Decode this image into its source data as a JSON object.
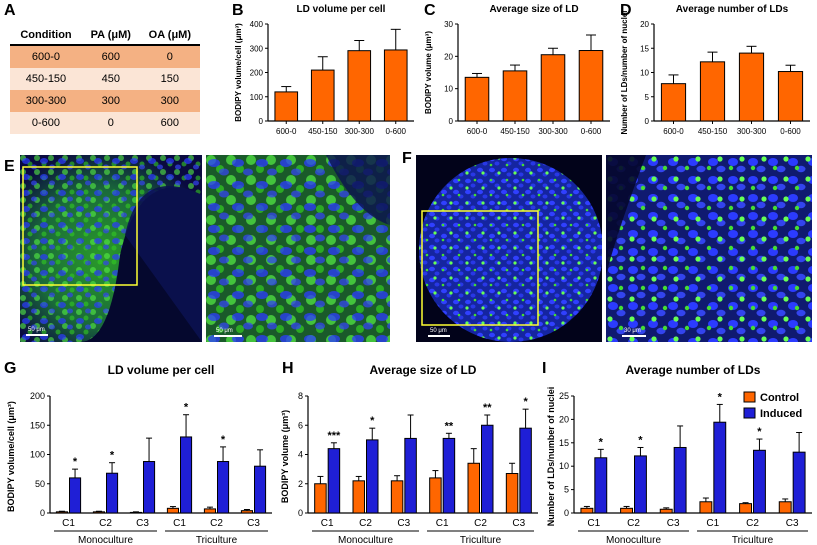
{
  "panel_labels": {
    "A": "A",
    "B": "B",
    "C": "C",
    "D": "D",
    "E": "E",
    "F": "F",
    "G": "G",
    "H": "H",
    "I": "I"
  },
  "table": {
    "headers": [
      "Condition",
      "PA (μM)",
      "OA (μM)"
    ],
    "rows": [
      [
        "600-0",
        "600",
        "0"
      ],
      [
        "450-150",
        "450",
        "150"
      ],
      [
        "300-300",
        "300",
        "300"
      ],
      [
        "0-600",
        "0",
        "600"
      ]
    ],
    "row_colors": [
      "#f4b183",
      "#fbe5d6",
      "#f4b183",
      "#fbe5d6"
    ]
  },
  "colors": {
    "orange": "#ff6600",
    "blue": "#1f1fd6",
    "yellow": "#ffff33"
  },
  "images": {
    "E_left": {
      "scale": "50 μm"
    },
    "E_right": {
      "scale": "50 μm"
    },
    "F_left": {
      "scale": "50 μm"
    },
    "F_right": {
      "scale": "30 μm"
    }
  },
  "chart_data": [
    {
      "id": "B",
      "type": "bar",
      "title": "LD volume per cell",
      "ylabel": "BODIPY volume/cell (μm³)",
      "categories": [
        "600-0",
        "450-150",
        "300-300",
        "0-600"
      ],
      "values": [
        120,
        210,
        290,
        293
      ],
      "errors": [
        22,
        55,
        42,
        85
      ],
      "ylim": [
        0,
        400
      ],
      "yticks": [
        0,
        100,
        200,
        300,
        400
      ]
    },
    {
      "id": "C",
      "type": "bar",
      "title": "Average size of LD",
      "ylabel": "BODIPY volume (μm³)",
      "categories": [
        "600-0",
        "450-150",
        "300-300",
        "0-600"
      ],
      "values": [
        13.5,
        15.5,
        20.5,
        21.8
      ],
      "errors": [
        1.2,
        1.8,
        2.0,
        4.8
      ],
      "ylim": [
        0,
        30
      ],
      "yticks": [
        0,
        10,
        20,
        30
      ]
    },
    {
      "id": "D",
      "type": "bar",
      "title": "Average number of LDs",
      "ylabel": "Number of LDs/number of nuclei",
      "categories": [
        "600-0",
        "450-150",
        "300-300",
        "0-600"
      ],
      "values": [
        7.7,
        12.2,
        14.0,
        10.2
      ],
      "errors": [
        1.8,
        2.0,
        1.4,
        1.3
      ],
      "ylim": [
        0,
        20
      ],
      "yticks": [
        0,
        5,
        10,
        15,
        20
      ]
    },
    {
      "id": "G",
      "type": "bar",
      "title": "LD volume per cell",
      "ylabel": "BODIPY volume/cell (μm³)",
      "categories": [
        "C1",
        "C2",
        "C3",
        "C1",
        "C2",
        "C3"
      ],
      "groups": [
        "Monoculture",
        "Triculture"
      ],
      "series": [
        {
          "name": "Control",
          "values": [
            2,
            2,
            1,
            8,
            7,
            4
          ],
          "errors": [
            1,
            1,
            1,
            3,
            3,
            2
          ]
        },
        {
          "name": "Induced",
          "values": [
            60,
            68,
            88,
            130,
            88,
            80
          ],
          "errors": [
            15,
            18,
            40,
            38,
            25,
            28
          ]
        }
      ],
      "significance": [
        "*",
        "*",
        "",
        "*",
        "*",
        ""
      ],
      "ylim": [
        0,
        200
      ],
      "yticks": [
        0,
        50,
        100,
        150,
        200
      ]
    },
    {
      "id": "H",
      "type": "bar",
      "title": "Average size of LD",
      "ylabel": "BODIPY volume (μm³)",
      "categories": [
        "C1",
        "C2",
        "C3",
        "C1",
        "C2",
        "C3"
      ],
      "groups": [
        "Monoculture",
        "Triculture"
      ],
      "series": [
        {
          "name": "Control",
          "values": [
            2.0,
            2.2,
            2.2,
            2.4,
            3.4,
            2.7
          ],
          "errors": [
            0.5,
            0.3,
            0.35,
            0.5,
            1.0,
            0.7
          ]
        },
        {
          "name": "Induced",
          "values": [
            4.4,
            5.0,
            5.1,
            5.1,
            6.0,
            5.8
          ],
          "errors": [
            0.4,
            0.8,
            1.6,
            0.35,
            0.7,
            1.3
          ]
        }
      ],
      "significance": [
        "***",
        "*",
        "",
        "**",
        "**",
        "*"
      ],
      "ylim": [
        0,
        8
      ],
      "yticks": [
        0,
        2,
        4,
        6,
        8
      ]
    },
    {
      "id": "I",
      "type": "bar",
      "title": "Average number of LDs",
      "ylabel": "Number of LDs/number of nuclei",
      "categories": [
        "C1",
        "C2",
        "C3",
        "C1",
        "C2",
        "C3"
      ],
      "groups": [
        "Monoculture",
        "Triculture"
      ],
      "series": [
        {
          "name": "Control",
          "values": [
            1.0,
            1.0,
            0.8,
            2.4,
            2.0,
            2.4
          ],
          "errors": [
            0.4,
            0.4,
            0.3,
            0.8,
            0.2,
            0.6
          ]
        },
        {
          "name": "Induced",
          "values": [
            11.8,
            12.2,
            14.0,
            19.4,
            13.4,
            13.0
          ],
          "errors": [
            1.8,
            1.8,
            4.6,
            3.8,
            2.4,
            4.2
          ]
        }
      ],
      "significance": [
        "*",
        "*",
        "",
        "*",
        "*",
        ""
      ],
      "ylim": [
        0,
        25
      ],
      "yticks": [
        0,
        5,
        10,
        15,
        20,
        25
      ],
      "legend": [
        "Control",
        "Induced"
      ],
      "legend_position": "top-right"
    }
  ]
}
